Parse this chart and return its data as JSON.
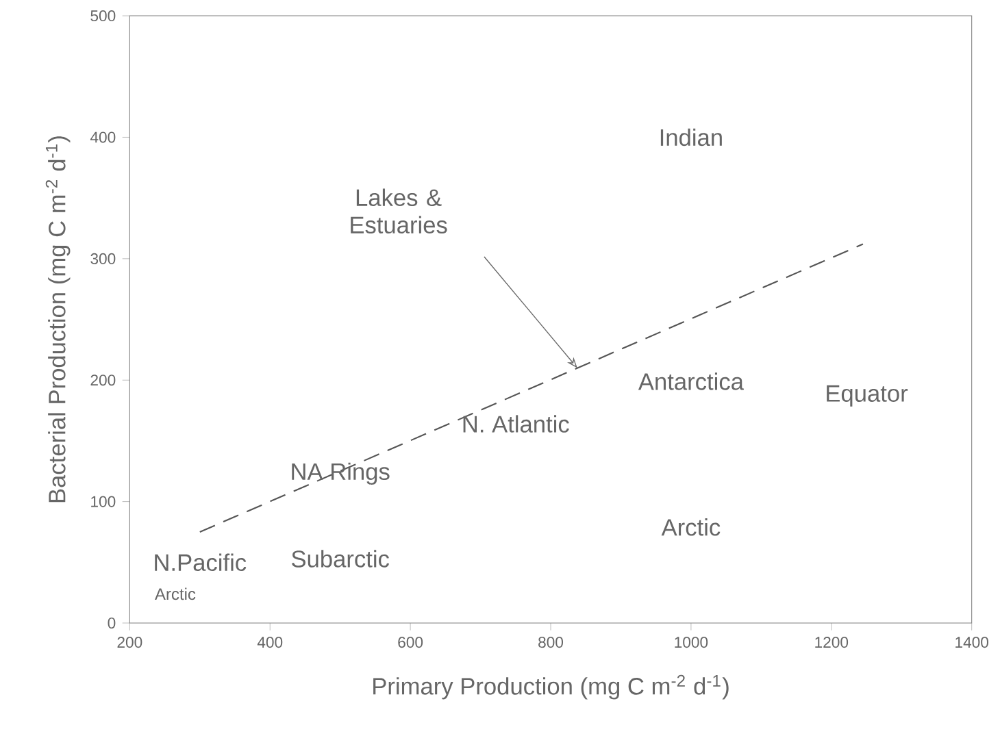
{
  "chart_data": {
    "type": "line",
    "xlabel": "Primary Production (mg C m$^{-2}$ d$^{-1}$)",
    "ylabel": "Bacterial Production  (mg C m$^{-2}$ d$^{-1}$)",
    "xlim": [
      200,
      1400
    ],
    "ylim": [
      0,
      500
    ],
    "xticks": [
      200,
      400,
      600,
      800,
      1000,
      1200,
      1400
    ],
    "yticks": [
      0,
      100,
      200,
      300,
      400,
      500
    ],
    "marker": "none",
    "series": [
      {
        "line_style": "dashed",
        "color": "#555555",
        "x": [
          300,
          1245
        ],
        "values": [
          75,
          312
        ]
      }
    ],
    "annotations": [
      "Lakes & Estuaries",
      "Indian",
      "Antarctica",
      "Equator",
      "N. Atlantic",
      "NA Rings",
      "Arctic",
      "Subarctic",
      "N.Pacific",
      "Arctic"
    ]
  }
}
